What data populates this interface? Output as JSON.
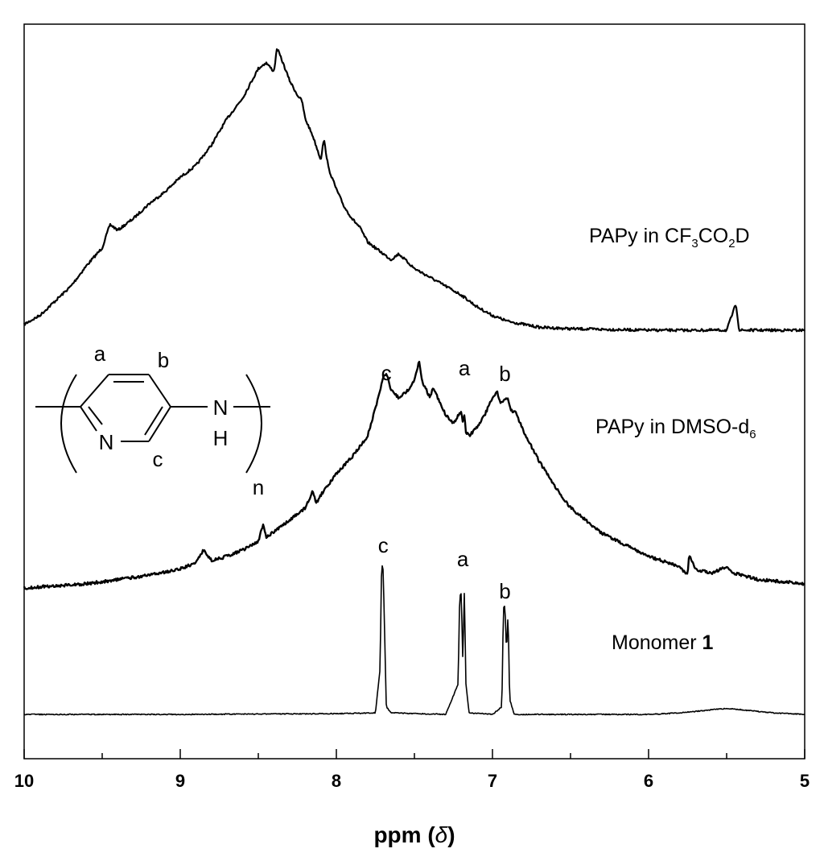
{
  "chart_data": {
    "type": "line",
    "xlabel": "ppm (δ)",
    "xlim": [
      10,
      5
    ],
    "x_reversed": true,
    "x_ticks": [
      10,
      9,
      8,
      7,
      6,
      5
    ],
    "x_tick_labels": [
      "10",
      "9",
      "8",
      "7",
      "6",
      "5"
    ],
    "y_axis_shown": false,
    "grid": false,
    "series": [
      {
        "name": "PAPy in CF3CO2D",
        "label_parts": [
          "PAPy in CF",
          "3",
          "CO",
          "2",
          "D"
        ],
        "x": [
          10.0,
          9.9,
          9.8,
          9.7,
          9.6,
          9.5,
          9.45,
          9.4,
          9.3,
          9.2,
          9.1,
          9.0,
          8.9,
          8.8,
          8.7,
          8.6,
          8.55,
          8.5,
          8.45,
          8.4,
          8.38,
          8.35,
          8.3,
          8.25,
          8.22,
          8.2,
          8.15,
          8.1,
          8.08,
          8.05,
          8.0,
          7.95,
          7.9,
          7.85,
          7.8,
          7.7,
          7.65,
          7.6,
          7.5,
          7.4,
          7.3,
          7.2,
          7.1,
          7.0,
          6.9,
          6.8,
          6.7,
          6.5,
          6.0,
          5.5,
          5.44,
          5.42,
          5.4,
          5.2,
          5.0
        ],
        "y": [
          0.02,
          0.05,
          0.1,
          0.15,
          0.22,
          0.28,
          0.36,
          0.34,
          0.38,
          0.43,
          0.47,
          0.52,
          0.56,
          0.63,
          0.72,
          0.79,
          0.84,
          0.89,
          0.91,
          0.88,
          0.96,
          0.92,
          0.85,
          0.8,
          0.78,
          0.72,
          0.66,
          0.58,
          0.65,
          0.55,
          0.48,
          0.42,
          0.38,
          0.35,
          0.3,
          0.26,
          0.24,
          0.26,
          0.21,
          0.18,
          0.15,
          0.12,
          0.08,
          0.05,
          0.03,
          0.02,
          0.01,
          0.005,
          0.0,
          0.0,
          0.09,
          0.0,
          0.0,
          0.0,
          0.0
        ]
      },
      {
        "name": "PAPy in DMSO-d6",
        "label_parts": [
          "PAPy in DMSO-d",
          "6"
        ],
        "x": [
          10.0,
          9.8,
          9.6,
          9.4,
          9.2,
          9.0,
          8.9,
          8.85,
          8.8,
          8.7,
          8.6,
          8.5,
          8.47,
          8.45,
          8.3,
          8.2,
          8.15,
          8.13,
          8.1,
          8.0,
          7.9,
          7.8,
          7.75,
          7.7,
          7.68,
          7.65,
          7.6,
          7.55,
          7.5,
          7.47,
          7.45,
          7.4,
          7.38,
          7.35,
          7.3,
          7.25,
          7.2,
          7.19,
          7.18,
          7.17,
          7.15,
          7.1,
          7.05,
          7.0,
          6.97,
          6.95,
          6.9,
          6.88,
          6.85,
          6.8,
          6.7,
          6.6,
          6.5,
          6.3,
          6.0,
          5.8,
          5.75,
          5.74,
          5.72,
          5.7,
          5.6,
          5.5,
          5.45,
          5.3,
          5.0
        ],
        "y": [
          0.0,
          0.01,
          0.02,
          0.04,
          0.06,
          0.09,
          0.12,
          0.18,
          0.13,
          0.15,
          0.18,
          0.22,
          0.3,
          0.24,
          0.32,
          0.38,
          0.46,
          0.4,
          0.44,
          0.54,
          0.62,
          0.72,
          0.85,
          1.0,
          1.02,
          0.94,
          0.9,
          0.93,
          0.98,
          1.08,
          0.98,
          0.9,
          0.95,
          0.9,
          0.82,
          0.78,
          0.84,
          0.78,
          0.82,
          0.74,
          0.72,
          0.76,
          0.82,
          0.9,
          0.93,
          0.88,
          0.9,
          0.84,
          0.83,
          0.74,
          0.6,
          0.48,
          0.38,
          0.26,
          0.15,
          0.1,
          0.06,
          0.16,
          0.12,
          0.09,
          0.07,
          0.1,
          0.07,
          0.04,
          0.02
        ]
      },
      {
        "name": "Monomer 1",
        "label_parts": [
          "Monomer ",
          "1"
        ],
        "x": [
          10.0,
          9.0,
          8.0,
          7.75,
          7.72,
          7.71,
          7.7,
          7.69,
          7.68,
          7.65,
          7.3,
          7.22,
          7.21,
          7.2,
          7.19,
          7.18,
          7.17,
          7.15,
          7.0,
          6.94,
          6.93,
          6.92,
          6.91,
          6.9,
          6.89,
          6.86,
          6.6,
          6.2,
          6.0,
          5.8,
          5.5,
          5.2,
          5.0
        ],
        "y": [
          0.0,
          0.0,
          0.005,
          0.01,
          0.3,
          1.0,
          0.95,
          0.5,
          0.05,
          0.01,
          0.0,
          0.2,
          0.78,
          0.8,
          0.35,
          0.82,
          0.2,
          0.01,
          0.0,
          0.05,
          0.7,
          0.72,
          0.4,
          0.68,
          0.1,
          0.0,
          0.0,
          0.0,
          0.0,
          0.01,
          0.04,
          0.01,
          0.0
        ]
      }
    ],
    "peak_labels": [
      {
        "series": "PAPy in DMSO-d6",
        "text": "c",
        "x": 7.68
      },
      {
        "series": "PAPy in DMSO-d6",
        "text": "a",
        "x": 7.18
      },
      {
        "series": "PAPy in DMSO-d6",
        "text": "b",
        "x": 6.92
      },
      {
        "series": "Monomer 1",
        "text": "c",
        "x": 7.7
      },
      {
        "series": "Monomer 1",
        "text": "a",
        "x": 7.19
      },
      {
        "series": "Monomer 1",
        "text": "b",
        "x": 6.92
      }
    ]
  },
  "structure": {
    "labels": [
      "a",
      "b",
      "c"
    ],
    "ring_atom": "N",
    "amine_n": "N",
    "amine_h": "H",
    "repeat": "n"
  }
}
